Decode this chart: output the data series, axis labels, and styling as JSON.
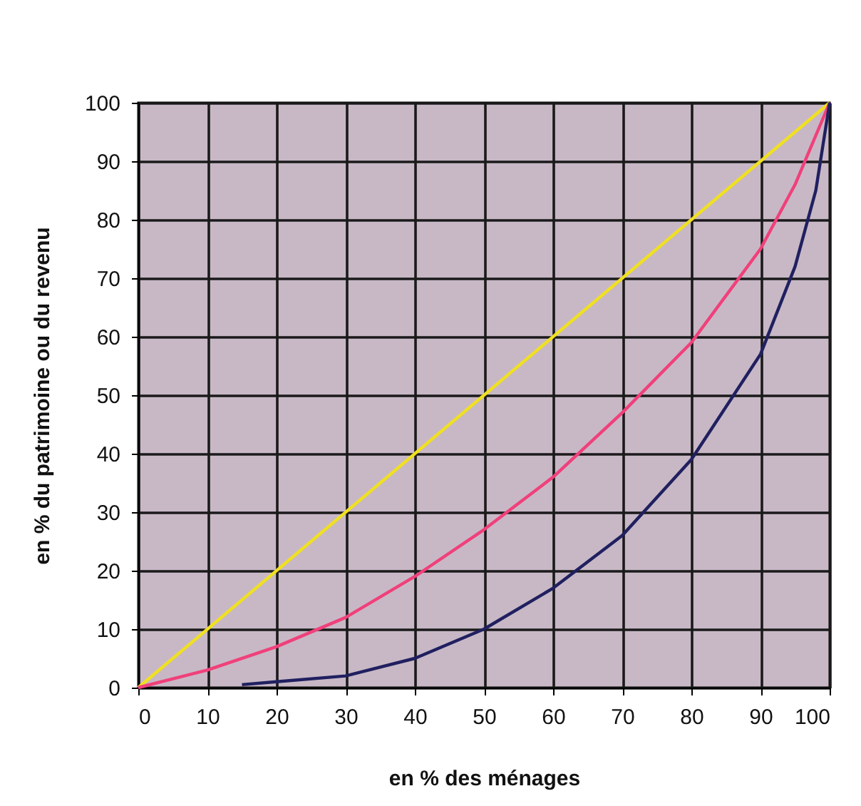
{
  "chart_data": {
    "type": "line",
    "xlabel": "en % des ménages",
    "ylabel": "en % du patrimoine ou du revenu",
    "xlim": [
      0,
      100
    ],
    "ylim": [
      0,
      100
    ],
    "xticks": [
      0,
      10,
      20,
      30,
      40,
      50,
      60,
      70,
      80,
      90,
      100
    ],
    "yticks": [
      0,
      10,
      20,
      30,
      40,
      50,
      60,
      70,
      80,
      90,
      100
    ],
    "grid": true,
    "line_style": "solid",
    "series": [
      {
        "color": "#f0e020",
        "x": [
          0,
          100
        ],
        "values": [
          0,
          100
        ]
      },
      {
        "color": "#f0407a",
        "x": [
          0,
          10,
          20,
          30,
          40,
          50,
          60,
          70,
          80,
          90,
          95,
          100
        ],
        "values": [
          0,
          3,
          7,
          12,
          19,
          27,
          36,
          47,
          59,
          75,
          86,
          100
        ]
      },
      {
        "color": "#202060",
        "x": [
          15,
          20,
          30,
          40,
          50,
          60,
          70,
          80,
          90,
          95,
          98,
          100
        ],
        "values": [
          0.5,
          1,
          2,
          5,
          10,
          17,
          26,
          39,
          57,
          72,
          85,
          100
        ]
      }
    ]
  }
}
